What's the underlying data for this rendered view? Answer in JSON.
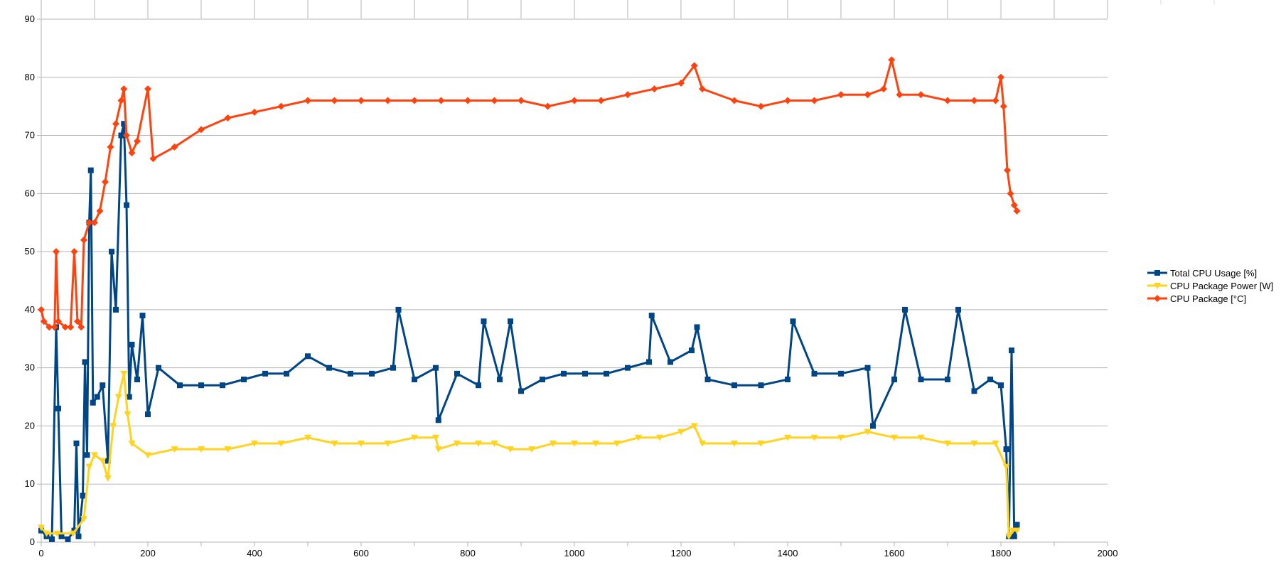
{
  "chart_data": {
    "type": "line",
    "title": "",
    "xlabel": "",
    "ylabel": "",
    "xlim": [
      0,
      2000
    ],
    "ylim": [
      0,
      90
    ],
    "x_ticks": [
      0,
      200,
      400,
      600,
      800,
      1000,
      1200,
      1400,
      1600,
      1800,
      2000
    ],
    "y_ticks": [
      0,
      10,
      20,
      30,
      40,
      50,
      60,
      70,
      80,
      90
    ],
    "grid": "horizontal",
    "legend_position": "right",
    "series": [
      {
        "name": "Total CPU Usage [%]",
        "color": "#004586",
        "marker": "square",
        "points": [
          [
            0,
            2
          ],
          [
            10,
            1
          ],
          [
            20,
            0.5
          ],
          [
            28,
            37
          ],
          [
            32,
            23
          ],
          [
            38,
            1
          ],
          [
            50,
            0.5
          ],
          [
            62,
            2
          ],
          [
            66,
            17
          ],
          [
            70,
            1
          ],
          [
            78,
            8
          ],
          [
            82,
            31
          ],
          [
            86,
            15
          ],
          [
            90,
            55
          ],
          [
            93,
            64
          ],
          [
            97,
            24
          ],
          [
            105,
            25
          ],
          [
            115,
            27
          ],
          [
            125,
            14
          ],
          [
            132,
            50
          ],
          [
            140,
            40
          ],
          [
            150,
            70
          ],
          [
            155,
            72
          ],
          [
            160,
            58
          ],
          [
            165,
            25
          ],
          [
            170,
            34
          ],
          [
            180,
            28
          ],
          [
            190,
            39
          ],
          [
            200,
            22
          ],
          [
            220,
            30
          ],
          [
            260,
            27
          ],
          [
            300,
            27
          ],
          [
            340,
            27
          ],
          [
            380,
            28
          ],
          [
            420,
            29
          ],
          [
            460,
            29
          ],
          [
            500,
            32
          ],
          [
            540,
            30
          ],
          [
            580,
            29
          ],
          [
            620,
            29
          ],
          [
            660,
            30
          ],
          [
            670,
            40
          ],
          [
            700,
            28
          ],
          [
            740,
            30
          ],
          [
            745,
            21
          ],
          [
            780,
            29
          ],
          [
            820,
            27
          ],
          [
            830,
            38
          ],
          [
            860,
            28
          ],
          [
            880,
            38
          ],
          [
            900,
            26
          ],
          [
            940,
            28
          ],
          [
            980,
            29
          ],
          [
            1020,
            29
          ],
          [
            1060,
            29
          ],
          [
            1100,
            30
          ],
          [
            1140,
            31
          ],
          [
            1145,
            39
          ],
          [
            1180,
            31
          ],
          [
            1220,
            33
          ],
          [
            1230,
            37
          ],
          [
            1250,
            28
          ],
          [
            1300,
            27
          ],
          [
            1350,
            27
          ],
          [
            1400,
            28
          ],
          [
            1410,
            38
          ],
          [
            1450,
            29
          ],
          [
            1500,
            29
          ],
          [
            1550,
            30
          ],
          [
            1560,
            20
          ],
          [
            1600,
            28
          ],
          [
            1620,
            40
          ],
          [
            1650,
            28
          ],
          [
            1700,
            28
          ],
          [
            1720,
            40
          ],
          [
            1750,
            26
          ],
          [
            1780,
            28
          ],
          [
            1800,
            27
          ],
          [
            1810,
            16
          ],
          [
            1815,
            1
          ],
          [
            1820,
            33
          ],
          [
            1825,
            1
          ],
          [
            1830,
            3
          ]
        ]
      },
      {
        "name": "CPU Package Power [W]",
        "color": "#ffd320",
        "marker": "triangle-down",
        "points": [
          [
            0,
            2.5
          ],
          [
            10,
            1.5
          ],
          [
            30,
            1.5
          ],
          [
            60,
            1.5
          ],
          [
            80,
            4
          ],
          [
            90,
            13
          ],
          [
            100,
            15
          ],
          [
            115,
            14
          ],
          [
            125,
            11
          ],
          [
            135,
            20
          ],
          [
            145,
            25
          ],
          [
            155,
            29
          ],
          [
            162,
            22
          ],
          [
            170,
            17
          ],
          [
            200,
            15
          ],
          [
            250,
            16
          ],
          [
            300,
            16
          ],
          [
            350,
            16
          ],
          [
            400,
            17
          ],
          [
            450,
            17
          ],
          [
            500,
            18
          ],
          [
            550,
            17
          ],
          [
            600,
            17
          ],
          [
            650,
            17
          ],
          [
            700,
            18
          ],
          [
            740,
            18
          ],
          [
            745,
            16
          ],
          [
            780,
            17
          ],
          [
            820,
            17
          ],
          [
            850,
            17
          ],
          [
            880,
            16
          ],
          [
            920,
            16
          ],
          [
            960,
            17
          ],
          [
            1000,
            17
          ],
          [
            1040,
            17
          ],
          [
            1080,
            17
          ],
          [
            1120,
            18
          ],
          [
            1160,
            18
          ],
          [
            1200,
            19
          ],
          [
            1225,
            20
          ],
          [
            1240,
            17
          ],
          [
            1300,
            17
          ],
          [
            1350,
            17
          ],
          [
            1400,
            18
          ],
          [
            1450,
            18
          ],
          [
            1500,
            18
          ],
          [
            1550,
            19
          ],
          [
            1600,
            18
          ],
          [
            1650,
            18
          ],
          [
            1700,
            17
          ],
          [
            1750,
            17
          ],
          [
            1790,
            17
          ],
          [
            1810,
            13
          ],
          [
            1815,
            1
          ],
          [
            1822,
            2
          ],
          [
            1830,
            2
          ]
        ]
      },
      {
        "name": "CPU Package [°C]",
        "color": "#ff420e",
        "marker": "diamond",
        "points": [
          [
            0,
            40
          ],
          [
            5,
            38
          ],
          [
            15,
            37
          ],
          [
            25,
            37
          ],
          [
            28,
            50
          ],
          [
            32,
            38
          ],
          [
            45,
            37
          ],
          [
            55,
            37
          ],
          [
            62,
            50
          ],
          [
            68,
            38
          ],
          [
            75,
            37
          ],
          [
            80,
            52
          ],
          [
            90,
            55
          ],
          [
            100,
            55
          ],
          [
            110,
            57
          ],
          [
            120,
            62
          ],
          [
            130,
            68
          ],
          [
            140,
            72
          ],
          [
            150,
            76
          ],
          [
            155,
            78
          ],
          [
            160,
            70
          ],
          [
            170,
            67
          ],
          [
            180,
            69
          ],
          [
            200,
            78
          ],
          [
            210,
            66
          ],
          [
            250,
            68
          ],
          [
            300,
            71
          ],
          [
            350,
            73
          ],
          [
            400,
            74
          ],
          [
            450,
            75
          ],
          [
            500,
            76
          ],
          [
            550,
            76
          ],
          [
            600,
            76
          ],
          [
            650,
            76
          ],
          [
            700,
            76
          ],
          [
            750,
            76
          ],
          [
            800,
            76
          ],
          [
            850,
            76
          ],
          [
            900,
            76
          ],
          [
            950,
            75
          ],
          [
            1000,
            76
          ],
          [
            1050,
            76
          ],
          [
            1100,
            77
          ],
          [
            1150,
            78
          ],
          [
            1200,
            79
          ],
          [
            1225,
            82
          ],
          [
            1240,
            78
          ],
          [
            1300,
            76
          ],
          [
            1350,
            75
          ],
          [
            1400,
            76
          ],
          [
            1450,
            76
          ],
          [
            1500,
            77
          ],
          [
            1550,
            77
          ],
          [
            1580,
            78
          ],
          [
            1595,
            83
          ],
          [
            1610,
            77
          ],
          [
            1650,
            77
          ],
          [
            1700,
            76
          ],
          [
            1750,
            76
          ],
          [
            1790,
            76
          ],
          [
            1800,
            80
          ],
          [
            1805,
            75
          ],
          [
            1812,
            64
          ],
          [
            1818,
            60
          ],
          [
            1825,
            58
          ],
          [
            1830,
            57
          ]
        ]
      }
    ]
  }
}
